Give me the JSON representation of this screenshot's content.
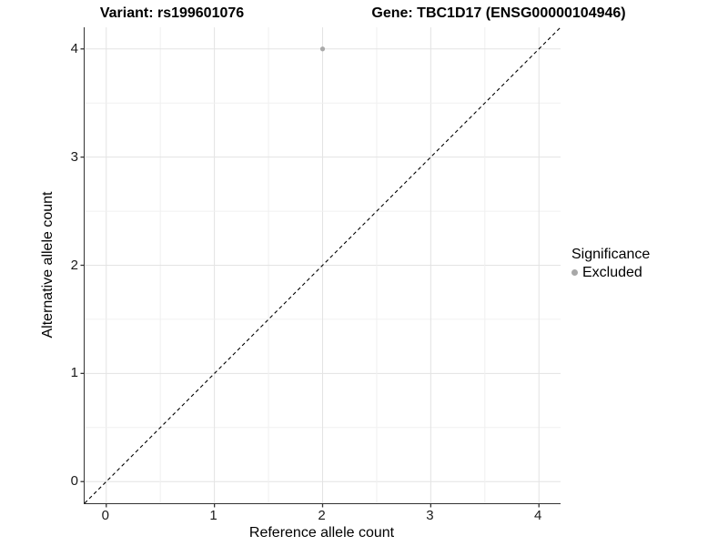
{
  "chart_data": {
    "type": "scatter",
    "title_left": "Variant: rs199601076",
    "title_right": "Gene: TBC1D17 (ENSG00000104946)",
    "xlabel": "Reference allele count",
    "ylabel": "Alternative allele count",
    "xlim": [
      -0.2,
      4.2
    ],
    "ylim": [
      -0.2,
      4.2
    ],
    "x_ticks": [
      0,
      1,
      2,
      3,
      4
    ],
    "y_ticks": [
      0,
      1,
      2,
      3,
      4
    ],
    "x_tick_labels": [
      "0",
      "1",
      "2",
      "3",
      "4"
    ],
    "y_tick_labels": [
      "0",
      "1",
      "2",
      "3",
      "4"
    ],
    "grid": {
      "on": true,
      "major_every": 1,
      "minor_every": 0.5,
      "major_color": "#e3e3e3",
      "minor_color": "#f0f0f0"
    },
    "axis_line_color": "#333333",
    "identity_line": {
      "slope": 1,
      "intercept": 0,
      "style": "dashed",
      "color": "#000000"
    },
    "points": [
      {
        "x": 2,
        "y": 4,
        "series": "Excluded",
        "color": "#a9a9a9",
        "radius": 2.6
      }
    ],
    "legend": {
      "title": "Significance",
      "position": "right",
      "items": [
        {
          "label": "Excluded",
          "color": "#a8a8a8"
        }
      ]
    }
  }
}
